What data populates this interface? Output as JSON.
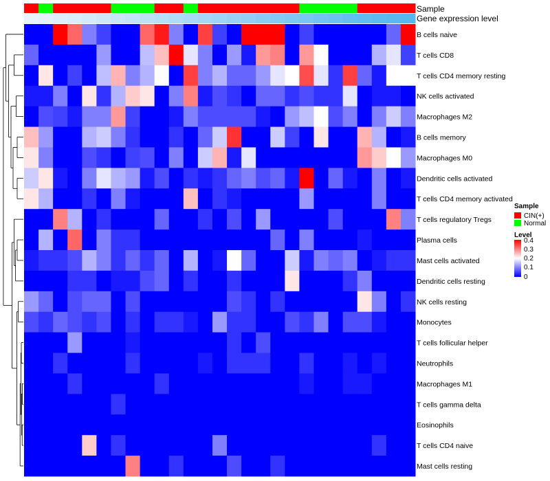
{
  "chart_data": {
    "type": "heatmap",
    "annotation_labels": {
      "sample": "Sample",
      "gene_expression": "Gene expression level"
    },
    "sample_groups": [
      "CIN(+)",
      "Normal",
      "CIN(+)",
      "CIN(+)",
      "CIN(+)",
      "CIN(+)",
      "Normal",
      "Normal",
      "Normal",
      "CIN(+)",
      "CIN(+)",
      "Normal",
      "CIN(+)",
      "CIN(+)",
      "CIN(+)",
      "CIN(+)",
      "CIN(+)",
      "CIN(+)",
      "CIN(+)",
      "Normal",
      "Normal",
      "Normal",
      "Normal",
      "CIN(+)",
      "CIN(+)",
      "CIN(+)",
      "CIN(+)"
    ],
    "expression_level": [
      0.05,
      0.08,
      0.11,
      0.15,
      0.18,
      0.22,
      0.26,
      0.3,
      0.34,
      0.38,
      0.42,
      0.46,
      0.5,
      0.54,
      0.58,
      0.62,
      0.66,
      0.7,
      0.74,
      0.78,
      0.82,
      0.86,
      0.9,
      0.93,
      0.96,
      0.98,
      1.0
    ],
    "rows": [
      "B cells naive",
      "T cells CD8",
      "T cells CD4 memory resting",
      "NK cells activated",
      "Macrophages M2",
      "B cells memory",
      "Macrophages M0",
      "Dendritic cells activated",
      "T cells CD4 memory activated",
      "T cells regulatory  Tregs",
      "Plasma cells",
      "Mast cells activated",
      "Dendritic cells resting",
      "NK cells resting",
      "Monocytes",
      "T cells follicular helper",
      "Neutrophils",
      "Macrophages M1",
      "T cells gamma delta",
      "Eosinophils",
      "T cells CD4 naive",
      "Mast cells resting"
    ],
    "values": [
      [
        0.0,
        0.0,
        0.4,
        0.32,
        0.1,
        0.05,
        0.0,
        0.0,
        0.32,
        0.38,
        0.1,
        0.0,
        0.35,
        0.05,
        0.0,
        0.4,
        0.4,
        0.4,
        0.0,
        0.05,
        0.0,
        0.0,
        0.0,
        0.0,
        0.0,
        0.08,
        0.4
      ],
      [
        0.08,
        0.0,
        0.0,
        0.0,
        0.0,
        0.12,
        0.0,
        0.0,
        0.15,
        0.25,
        0.4,
        0.18,
        0.1,
        0.0,
        0.12,
        0.02,
        0.28,
        0.3,
        0.0,
        0.28,
        0.2,
        0.0,
        0.0,
        0.0,
        0.14,
        0.18,
        0.05
      ],
      [
        0.0,
        0.22,
        0.0,
        0.05,
        0.0,
        0.15,
        0.26,
        0.1,
        0.14,
        0.2,
        0.0,
        0.35,
        0.1,
        0.14,
        0.08,
        0.08,
        0.12,
        0.18,
        0.2,
        0.34,
        0.18,
        0.04,
        0.35,
        0.08,
        0.02,
        0.2,
        0.2
      ],
      [
        0.02,
        0.02,
        0.1,
        0.0,
        0.22,
        0.04,
        0.14,
        0.24,
        0.22,
        0.0,
        0.1,
        0.3,
        0.02,
        0.06,
        0.04,
        0.0,
        0.08,
        0.08,
        0.04,
        0.06,
        0.04,
        0.04,
        0.18,
        0.0,
        0.02,
        0.02,
        0.0
      ],
      [
        0.0,
        0.06,
        0.05,
        0.02,
        0.1,
        0.1,
        0.28,
        0.05,
        0.0,
        0.0,
        0.02,
        0.1,
        0.06,
        0.06,
        0.06,
        0.06,
        0.02,
        0.0,
        0.12,
        0.15,
        0.2,
        0.06,
        0.1,
        0.0,
        0.1,
        0.16,
        0.1
      ],
      [
        0.25,
        0.12,
        0.0,
        0.0,
        0.14,
        0.16,
        0.1,
        0.04,
        0.0,
        0.0,
        0.04,
        0.0,
        0.08,
        0.16,
        0.36,
        0.0,
        0.0,
        0.16,
        0.05,
        0.0,
        0.22,
        0.0,
        0.0,
        0.26,
        0.14,
        0.0,
        0.02
      ],
      [
        0.22,
        0.1,
        0.0,
        0.0,
        0.06,
        0.04,
        0.0,
        0.05,
        0.06,
        0.0,
        0.1,
        0.0,
        0.16,
        0.26,
        0.02,
        0.18,
        0.0,
        0.0,
        0.0,
        0.0,
        0.0,
        0.0,
        0.0,
        0.28,
        0.24,
        0.2,
        0.12
      ],
      [
        0.16,
        0.22,
        0.02,
        0.0,
        0.1,
        0.18,
        0.14,
        0.12,
        0.02,
        0.06,
        0.0,
        0.04,
        0.02,
        0.04,
        0.08,
        0.1,
        0.06,
        0.08,
        0.02,
        0.4,
        0.0,
        0.08,
        0.02,
        0.0,
        0.1,
        0.0,
        0.02
      ],
      [
        0.22,
        0.14,
        0.0,
        0.0,
        0.04,
        0.0,
        0.1,
        0.02,
        0.0,
        0.0,
        0.0,
        0.25,
        0.0,
        0.04,
        0.02,
        0.0,
        0.0,
        0.0,
        0.0,
        0.12,
        0.0,
        0.0,
        0.0,
        0.0,
        0.1,
        0.0,
        0.0
      ],
      [
        0.0,
        0.0,
        0.3,
        0.14,
        0.0,
        0.04,
        0.0,
        0.0,
        0.0,
        0.08,
        0.0,
        0.0,
        0.04,
        0.0,
        0.06,
        0.0,
        0.12,
        0.0,
        0.0,
        0.0,
        0.0,
        0.06,
        0.0,
        0.0,
        0.0,
        0.3,
        0.1
      ],
      [
        0.0,
        0.14,
        0.0,
        0.32,
        0.0,
        0.1,
        0.04,
        0.04,
        0.0,
        0.0,
        0.0,
        0.0,
        0.0,
        0.0,
        0.0,
        0.0,
        0.0,
        0.08,
        0.0,
        0.1,
        0.0,
        0.0,
        0.0,
        0.02,
        0.0,
        0.0,
        0.0
      ],
      [
        0.02,
        0.04,
        0.04,
        0.06,
        0.14,
        0.1,
        0.04,
        0.08,
        0.04,
        0.08,
        0.0,
        0.14,
        0.0,
        0.02,
        0.2,
        0.08,
        0.0,
        0.0,
        0.16,
        0.02,
        0.1,
        0.08,
        0.1,
        0.0,
        0.02,
        0.04,
        0.04
      ],
      [
        0.0,
        0.0,
        0.0,
        0.04,
        0.04,
        0.0,
        0.02,
        0.02,
        0.06,
        0.08,
        0.0,
        0.04,
        0.0,
        0.0,
        0.04,
        0.0,
        0.0,
        0.0,
        0.22,
        0.0,
        0.0,
        0.0,
        0.04,
        0.1,
        0.0,
        0.0,
        0.0
      ],
      [
        0.12,
        0.08,
        0.0,
        0.06,
        0.08,
        0.08,
        0.0,
        0.06,
        0.0,
        0.0,
        0.0,
        0.0,
        0.0,
        0.0,
        0.06,
        0.04,
        0.0,
        0.04,
        0.0,
        0.0,
        0.0,
        0.0,
        0.0,
        0.22,
        0.1,
        0.0,
        0.04
      ],
      [
        0.06,
        0.04,
        0.08,
        0.06,
        0.04,
        0.06,
        0.0,
        0.04,
        0.0,
        0.04,
        0.04,
        0.02,
        0.0,
        0.12,
        0.04,
        0.04,
        0.0,
        0.0,
        0.06,
        0.04,
        0.1,
        0.0,
        0.06,
        0.06,
        0.02,
        0.0,
        0.0
      ],
      [
        0.0,
        0.0,
        0.0,
        0.12,
        0.0,
        0.0,
        0.0,
        0.02,
        0.0,
        0.0,
        0.0,
        0.0,
        0.0,
        0.0,
        0.04,
        0.0,
        0.06,
        0.0,
        0.0,
        0.0,
        0.0,
        0.0,
        0.0,
        0.0,
        0.0,
        0.0,
        0.0
      ],
      [
        0.0,
        0.0,
        0.04,
        0.0,
        0.0,
        0.0,
        0.0,
        0.04,
        0.0,
        0.0,
        0.0,
        0.0,
        0.02,
        0.0,
        0.04,
        0.04,
        0.04,
        0.0,
        0.0,
        0.04,
        0.0,
        0.0,
        0.02,
        0.0,
        0.02,
        0.0,
        0.0
      ],
      [
        0.0,
        0.0,
        0.0,
        0.04,
        0.0,
        0.0,
        0.0,
        0.0,
        0.0,
        0.04,
        0.0,
        0.0,
        0.0,
        0.0,
        0.0,
        0.0,
        0.0,
        0.0,
        0.0,
        0.02,
        0.0,
        0.0,
        0.02,
        0.02,
        0.0,
        0.0,
        0.0
      ],
      [
        0.0,
        0.0,
        0.0,
        0.0,
        0.0,
        0.0,
        0.04,
        0.0,
        0.0,
        0.0,
        0.0,
        0.0,
        0.0,
        0.0,
        0.0,
        0.0,
        0.0,
        0.0,
        0.0,
        0.0,
        0.0,
        0.0,
        0.0,
        0.0,
        0.0,
        0.0,
        0.0
      ],
      [
        0.0,
        0.0,
        0.0,
        0.0,
        0.0,
        0.0,
        0.0,
        0.0,
        0.0,
        0.0,
        0.0,
        0.0,
        0.0,
        0.0,
        0.0,
        0.0,
        0.0,
        0.0,
        0.0,
        0.0,
        0.0,
        0.0,
        0.0,
        0.0,
        0.0,
        0.0,
        0.0
      ],
      [
        0.0,
        0.0,
        0.0,
        0.0,
        0.24,
        0.0,
        0.04,
        0.0,
        0.0,
        0.0,
        0.0,
        0.0,
        0.0,
        0.1,
        0.0,
        0.0,
        0.0,
        0.0,
        0.0,
        0.0,
        0.0,
        0.0,
        0.0,
        0.0,
        0.04,
        0.0,
        0.0
      ],
      [
        0.0,
        0.0,
        0.0,
        0.0,
        0.0,
        0.0,
        0.0,
        0.3,
        0.0,
        0.0,
        0.04,
        0.0,
        0.0,
        0.0,
        0.06,
        0.0,
        0.0,
        0.04,
        0.0,
        0.0,
        0.0,
        0.0,
        0.0,
        0.0,
        0.0,
        0.0,
        0.0
      ]
    ],
    "color_scale": {
      "min": 0,
      "max": 0.4,
      "low": "#0000ff",
      "mid": "#ffffff",
      "high": "#ff0000",
      "mid_value": 0.2
    },
    "legend": {
      "sample_title": "Sample",
      "sample_entries": [
        {
          "label": "CIN(+)",
          "color": "#ff0000"
        },
        {
          "label": "Normal",
          "color": "#00ff00"
        }
      ],
      "level_title": "Level",
      "level_ticks": [
        "0.4",
        "0.3",
        "0.2",
        "0.1",
        "0"
      ]
    },
    "expression_bar_colors": {
      "low": "#f0f6fc",
      "high": "#56b8ee"
    }
  }
}
